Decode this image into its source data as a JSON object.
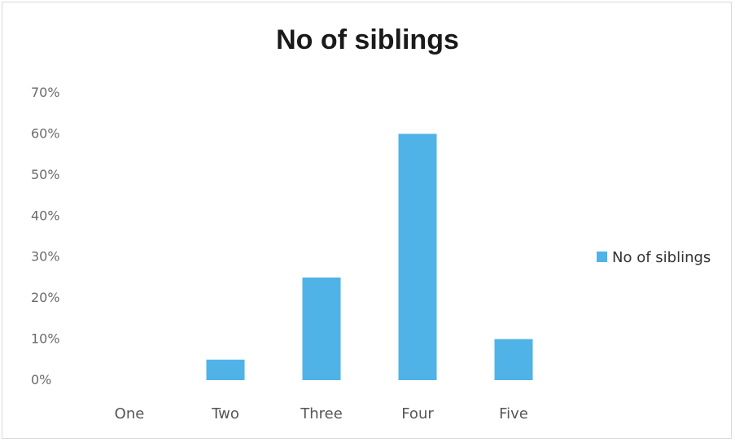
{
  "chart_data": {
    "type": "bar",
    "title": "No of siblings",
    "categories": [
      "One",
      "Two",
      "Three",
      "Four",
      "Five"
    ],
    "series": [
      {
        "name": "No of siblings",
        "values": [
          0,
          5,
          25,
          60,
          10
        ],
        "color": "#4fb3e8"
      }
    ],
    "ylim": [
      0,
      70
    ],
    "yticks": [
      "0%",
      "10%",
      "20%",
      "30%",
      "40%",
      "50%",
      "60%",
      "70%"
    ],
    "grid": false,
    "legend": "right"
  }
}
